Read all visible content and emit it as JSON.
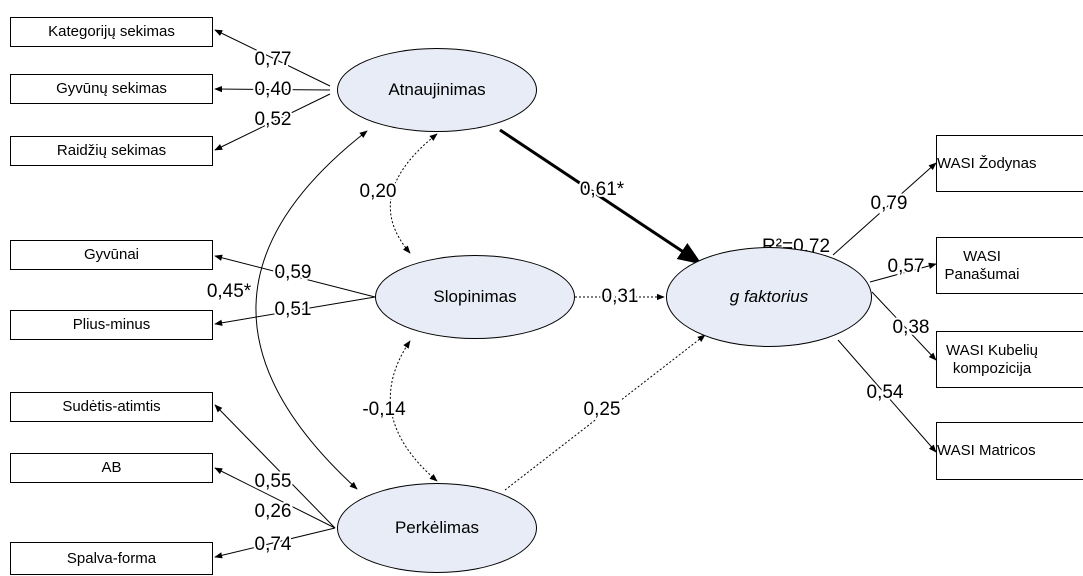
{
  "nodes": [
    {
      "label": "Kategorijų sekimas"
    },
    {
      "label": "Gyvūnų sekimas"
    },
    {
      "label": "Raidžių sekimas"
    },
    {
      "label": "Gyvūnai"
    },
    {
      "label": "Plius-minus"
    },
    {
      "label": "Sudėtis-atimtis"
    },
    {
      "label": "AB"
    },
    {
      "label": "Spalva-forma"
    },
    {
      "label": "Atnaujinimas"
    },
    {
      "label": "Slopinimas"
    },
    {
      "label": "Perkėlimas"
    },
    {
      "label": "g faktorius"
    },
    {
      "label": "WASI Žodynas"
    },
    {
      "label": "WASI Panašumai"
    },
    {
      "label": "WASI Kubelių kompozicija"
    },
    {
      "label": "WASI Matricos"
    }
  ],
  "edges": [
    {
      "label": "0,77"
    },
    {
      "label": "0,40"
    },
    {
      "label": "0,52"
    },
    {
      "label": "0,59"
    },
    {
      "label": "0,51"
    },
    {
      "label": "0,55"
    },
    {
      "label": "0,26"
    },
    {
      "label": "0,74"
    },
    {
      "label": "0,20"
    },
    {
      "label": "-0,14"
    },
    {
      "label": "0,45*"
    },
    {
      "label": "0,61*"
    },
    {
      "label": "0,31"
    },
    {
      "label": "0,25"
    },
    {
      "label": "0,79"
    },
    {
      "label": "0,57"
    },
    {
      "label": "0,38"
    },
    {
      "label": "0,54"
    }
  ],
  "r_squared": "R²=0,72"
}
